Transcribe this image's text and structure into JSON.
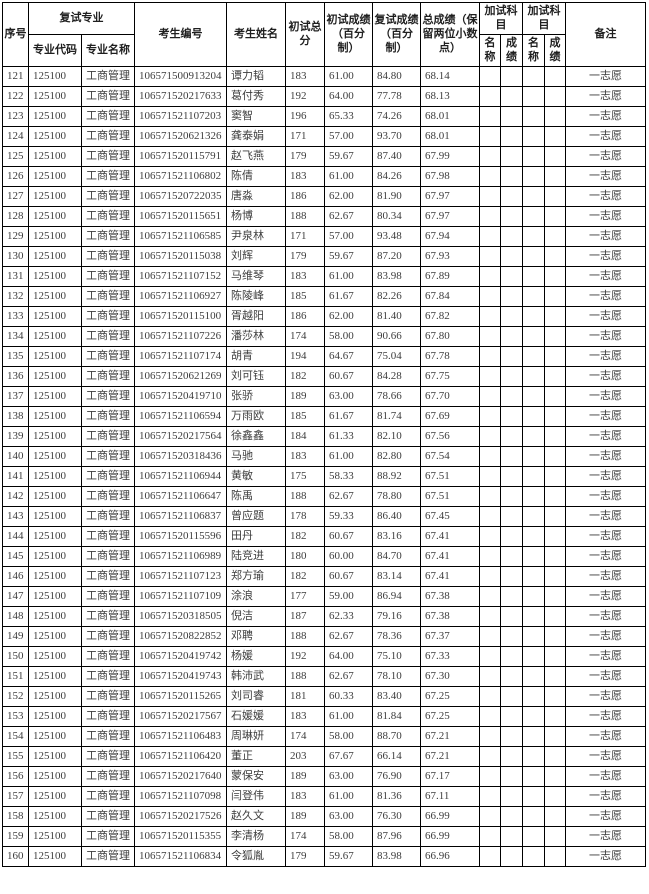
{
  "table": {
    "headers": {
      "seq": "序号",
      "retest_major": "复试专业",
      "major_code": "专业代码",
      "major_name": "专业名称",
      "candidate_no": "考生编号",
      "candidate_name": "考生姓名",
      "initial_total": "初试总分",
      "initial_pct": "初试成绩（百分制）",
      "retest_pct": "复试成绩（百分制）",
      "total_score": "总成绩（保留两位小数点）",
      "extra_subjects": "加试科目",
      "extra_name": "名称",
      "extra_score": "成绩",
      "remark": "备注"
    },
    "rows": [
      {
        "seq": "121",
        "major_code": "125100",
        "major_name": "工商管理",
        "candidate_no": "106571500913204",
        "name": "谭力韬",
        "initial_total": "183",
        "initial_pct": "61.00",
        "retest_pct": "84.80",
        "total": "68.14",
        "extra1_name": "",
        "extra1_score": "",
        "extra2_name": "",
        "extra2_score": "",
        "remark": "一志愿"
      },
      {
        "seq": "122",
        "major_code": "125100",
        "major_name": "工商管理",
        "candidate_no": "106571520217633",
        "name": "葛付秀",
        "initial_total": "192",
        "initial_pct": "64.00",
        "retest_pct": "77.78",
        "total": "68.13",
        "extra1_name": "",
        "extra1_score": "",
        "extra2_name": "",
        "extra2_score": "",
        "remark": "一志愿"
      },
      {
        "seq": "123",
        "major_code": "125100",
        "major_name": "工商管理",
        "candidate_no": "106571521107203",
        "name": "窦智",
        "initial_total": "196",
        "initial_pct": "65.33",
        "retest_pct": "74.26",
        "total": "68.01",
        "extra1_name": "",
        "extra1_score": "",
        "extra2_name": "",
        "extra2_score": "",
        "remark": "一志愿"
      },
      {
        "seq": "124",
        "major_code": "125100",
        "major_name": "工商管理",
        "candidate_no": "106571520621326",
        "name": "龚泰娟",
        "initial_total": "171",
        "initial_pct": "57.00",
        "retest_pct": "93.70",
        "total": "68.01",
        "extra1_name": "",
        "extra1_score": "",
        "extra2_name": "",
        "extra2_score": "",
        "remark": "一志愿"
      },
      {
        "seq": "125",
        "major_code": "125100",
        "major_name": "工商管理",
        "candidate_no": "106571520115791",
        "name": "赵飞燕",
        "initial_total": "179",
        "initial_pct": "59.67",
        "retest_pct": "87.40",
        "total": "67.99",
        "extra1_name": "",
        "extra1_score": "",
        "extra2_name": "",
        "extra2_score": "",
        "remark": "一志愿"
      },
      {
        "seq": "126",
        "major_code": "125100",
        "major_name": "工商管理",
        "candidate_no": "106571521106802",
        "name": "陈倩",
        "initial_total": "183",
        "initial_pct": "61.00",
        "retest_pct": "84.26",
        "total": "67.98",
        "extra1_name": "",
        "extra1_score": "",
        "extra2_name": "",
        "extra2_score": "",
        "remark": "一志愿"
      },
      {
        "seq": "127",
        "major_code": "125100",
        "major_name": "工商管理",
        "candidate_no": "106571520722035",
        "name": "唐淼",
        "initial_total": "186",
        "initial_pct": "62.00",
        "retest_pct": "81.90",
        "total": "67.97",
        "extra1_name": "",
        "extra1_score": "",
        "extra2_name": "",
        "extra2_score": "",
        "remark": "一志愿"
      },
      {
        "seq": "128",
        "major_code": "125100",
        "major_name": "工商管理",
        "candidate_no": "106571520115651",
        "name": "杨博",
        "initial_total": "188",
        "initial_pct": "62.67",
        "retest_pct": "80.34",
        "total": "67.97",
        "extra1_name": "",
        "extra1_score": "",
        "extra2_name": "",
        "extra2_score": "",
        "remark": "一志愿"
      },
      {
        "seq": "129",
        "major_code": "125100",
        "major_name": "工商管理",
        "candidate_no": "106571521106585",
        "name": "尹泉林",
        "initial_total": "171",
        "initial_pct": "57.00",
        "retest_pct": "93.48",
        "total": "67.94",
        "extra1_name": "",
        "extra1_score": "",
        "extra2_name": "",
        "extra2_score": "",
        "remark": "一志愿"
      },
      {
        "seq": "130",
        "major_code": "125100",
        "major_name": "工商管理",
        "candidate_no": "106571520115038",
        "name": "刘辉",
        "initial_total": "179",
        "initial_pct": "59.67",
        "retest_pct": "87.20",
        "total": "67.93",
        "extra1_name": "",
        "extra1_score": "",
        "extra2_name": "",
        "extra2_score": "",
        "remark": "一志愿"
      },
      {
        "seq": "131",
        "major_code": "125100",
        "major_name": "工商管理",
        "candidate_no": "106571521107152",
        "name": "马维琴",
        "initial_total": "183",
        "initial_pct": "61.00",
        "retest_pct": "83.98",
        "total": "67.89",
        "extra1_name": "",
        "extra1_score": "",
        "extra2_name": "",
        "extra2_score": "",
        "remark": "一志愿"
      },
      {
        "seq": "132",
        "major_code": "125100",
        "major_name": "工商管理",
        "candidate_no": "106571521106927",
        "name": "陈陵峰",
        "initial_total": "185",
        "initial_pct": "61.67",
        "retest_pct": "82.26",
        "total": "67.84",
        "extra1_name": "",
        "extra1_score": "",
        "extra2_name": "",
        "extra2_score": "",
        "remark": "一志愿"
      },
      {
        "seq": "133",
        "major_code": "125100",
        "major_name": "工商管理",
        "candidate_no": "106571520115100",
        "name": "胥越阳",
        "initial_total": "186",
        "initial_pct": "62.00",
        "retest_pct": "81.40",
        "total": "67.82",
        "extra1_name": "",
        "extra1_score": "",
        "extra2_name": "",
        "extra2_score": "",
        "remark": "一志愿"
      },
      {
        "seq": "134",
        "major_code": "125100",
        "major_name": "工商管理",
        "candidate_no": "106571521107226",
        "name": "潘莎林",
        "initial_total": "174",
        "initial_pct": "58.00",
        "retest_pct": "90.66",
        "total": "67.80",
        "extra1_name": "",
        "extra1_score": "",
        "extra2_name": "",
        "extra2_score": "",
        "remark": "一志愿"
      },
      {
        "seq": "135",
        "major_code": "125100",
        "major_name": "工商管理",
        "candidate_no": "106571521107174",
        "name": "胡青",
        "initial_total": "194",
        "initial_pct": "64.67",
        "retest_pct": "75.04",
        "total": "67.78",
        "extra1_name": "",
        "extra1_score": "",
        "extra2_name": "",
        "extra2_score": "",
        "remark": "一志愿"
      },
      {
        "seq": "136",
        "major_code": "125100",
        "major_name": "工商管理",
        "candidate_no": "106571520621269",
        "name": "刘可钰",
        "initial_total": "182",
        "initial_pct": "60.67",
        "retest_pct": "84.28",
        "total": "67.75",
        "extra1_name": "",
        "extra1_score": "",
        "extra2_name": "",
        "extra2_score": "",
        "remark": "一志愿"
      },
      {
        "seq": "137",
        "major_code": "125100",
        "major_name": "工商管理",
        "candidate_no": "106571520419710",
        "name": "张骄",
        "initial_total": "189",
        "initial_pct": "63.00",
        "retest_pct": "78.66",
        "total": "67.70",
        "extra1_name": "",
        "extra1_score": "",
        "extra2_name": "",
        "extra2_score": "",
        "remark": "一志愿"
      },
      {
        "seq": "138",
        "major_code": "125100",
        "major_name": "工商管理",
        "candidate_no": "106571521106594",
        "name": "万雨欧",
        "initial_total": "185",
        "initial_pct": "61.67",
        "retest_pct": "81.74",
        "total": "67.69",
        "extra1_name": "",
        "extra1_score": "",
        "extra2_name": "",
        "extra2_score": "",
        "remark": "一志愿"
      },
      {
        "seq": "139",
        "major_code": "125100",
        "major_name": "工商管理",
        "candidate_no": "106571520217564",
        "name": "徐鑫鑫",
        "initial_total": "184",
        "initial_pct": "61.33",
        "retest_pct": "82.10",
        "total": "67.56",
        "extra1_name": "",
        "extra1_score": "",
        "extra2_name": "",
        "extra2_score": "",
        "remark": "一志愿"
      },
      {
        "seq": "140",
        "major_code": "125100",
        "major_name": "工商管理",
        "candidate_no": "106571520318436",
        "name": "马驰",
        "initial_total": "183",
        "initial_pct": "61.00",
        "retest_pct": "82.80",
        "total": "67.54",
        "extra1_name": "",
        "extra1_score": "",
        "extra2_name": "",
        "extra2_score": "",
        "remark": "一志愿"
      },
      {
        "seq": "141",
        "major_code": "125100",
        "major_name": "工商管理",
        "candidate_no": "106571521106944",
        "name": "黄敏",
        "initial_total": "175",
        "initial_pct": "58.33",
        "retest_pct": "88.92",
        "total": "67.51",
        "extra1_name": "",
        "extra1_score": "",
        "extra2_name": "",
        "extra2_score": "",
        "remark": "一志愿"
      },
      {
        "seq": "142",
        "major_code": "125100",
        "major_name": "工商管理",
        "candidate_no": "106571521106647",
        "name": "陈禹",
        "initial_total": "188",
        "initial_pct": "62.67",
        "retest_pct": "78.80",
        "total": "67.51",
        "extra1_name": "",
        "extra1_score": "",
        "extra2_name": "",
        "extra2_score": "",
        "remark": "一志愿"
      },
      {
        "seq": "143",
        "major_code": "125100",
        "major_name": "工商管理",
        "candidate_no": "106571521106837",
        "name": "曾应题",
        "initial_total": "178",
        "initial_pct": "59.33",
        "retest_pct": "86.40",
        "total": "67.45",
        "extra1_name": "",
        "extra1_score": "",
        "extra2_name": "",
        "extra2_score": "",
        "remark": "一志愿"
      },
      {
        "seq": "144",
        "major_code": "125100",
        "major_name": "工商管理",
        "candidate_no": "106571520115596",
        "name": "田丹",
        "initial_total": "182",
        "initial_pct": "60.67",
        "retest_pct": "83.16",
        "total": "67.41",
        "extra1_name": "",
        "extra1_score": "",
        "extra2_name": "",
        "extra2_score": "",
        "remark": "一志愿"
      },
      {
        "seq": "145",
        "major_code": "125100",
        "major_name": "工商管理",
        "candidate_no": "106571521106989",
        "name": "陆竞进",
        "initial_total": "180",
        "initial_pct": "60.00",
        "retest_pct": "84.70",
        "total": "67.41",
        "extra1_name": "",
        "extra1_score": "",
        "extra2_name": "",
        "extra2_score": "",
        "remark": "一志愿"
      },
      {
        "seq": "146",
        "major_code": "125100",
        "major_name": "工商管理",
        "candidate_no": "106571521107123",
        "name": "郑方瑜",
        "initial_total": "182",
        "initial_pct": "60.67",
        "retest_pct": "83.14",
        "total": "67.41",
        "extra1_name": "",
        "extra1_score": "",
        "extra2_name": "",
        "extra2_score": "",
        "remark": "一志愿"
      },
      {
        "seq": "147",
        "major_code": "125100",
        "major_name": "工商管理",
        "candidate_no": "106571521107109",
        "name": "涂浪",
        "initial_total": "177",
        "initial_pct": "59.00",
        "retest_pct": "86.94",
        "total": "67.38",
        "extra1_name": "",
        "extra1_score": "",
        "extra2_name": "",
        "extra2_score": "",
        "remark": "一志愿"
      },
      {
        "seq": "148",
        "major_code": "125100",
        "major_name": "工商管理",
        "candidate_no": "106571520318505",
        "name": "倪洁",
        "initial_total": "187",
        "initial_pct": "62.33",
        "retest_pct": "79.16",
        "total": "67.38",
        "extra1_name": "",
        "extra1_score": "",
        "extra2_name": "",
        "extra2_score": "",
        "remark": "一志愿"
      },
      {
        "seq": "149",
        "major_code": "125100",
        "major_name": "工商管理",
        "candidate_no": "106571520822852",
        "name": "邓聘",
        "initial_total": "188",
        "initial_pct": "62.67",
        "retest_pct": "78.36",
        "total": "67.37",
        "extra1_name": "",
        "extra1_score": "",
        "extra2_name": "",
        "extra2_score": "",
        "remark": "一志愿"
      },
      {
        "seq": "150",
        "major_code": "125100",
        "major_name": "工商管理",
        "candidate_no": "106571520419742",
        "name": "杨媛",
        "initial_total": "192",
        "initial_pct": "64.00",
        "retest_pct": "75.10",
        "total": "67.33",
        "extra1_name": "",
        "extra1_score": "",
        "extra2_name": "",
        "extra2_score": "",
        "remark": "一志愿"
      },
      {
        "seq": "151",
        "major_code": "125100",
        "major_name": "工商管理",
        "candidate_no": "106571520419743",
        "name": "韩沛武",
        "initial_total": "188",
        "initial_pct": "62.67",
        "retest_pct": "78.10",
        "total": "67.30",
        "extra1_name": "",
        "extra1_score": "",
        "extra2_name": "",
        "extra2_score": "",
        "remark": "一志愿"
      },
      {
        "seq": "152",
        "major_code": "125100",
        "major_name": "工商管理",
        "candidate_no": "106571520115265",
        "name": "刘司睿",
        "initial_total": "181",
        "initial_pct": "60.33",
        "retest_pct": "83.40",
        "total": "67.25",
        "extra1_name": "",
        "extra1_score": "",
        "extra2_name": "",
        "extra2_score": "",
        "remark": "一志愿"
      },
      {
        "seq": "153",
        "major_code": "125100",
        "major_name": "工商管理",
        "candidate_no": "106571520217567",
        "name": "石媛媛",
        "initial_total": "183",
        "initial_pct": "61.00",
        "retest_pct": "81.84",
        "total": "67.25",
        "extra1_name": "",
        "extra1_score": "",
        "extra2_name": "",
        "extra2_score": "",
        "remark": "一志愿"
      },
      {
        "seq": "154",
        "major_code": "125100",
        "major_name": "工商管理",
        "candidate_no": "106571521106483",
        "name": "周琳妍",
        "initial_total": "174",
        "initial_pct": "58.00",
        "retest_pct": "88.70",
        "total": "67.21",
        "extra1_name": "",
        "extra1_score": "",
        "extra2_name": "",
        "extra2_score": "",
        "remark": "一志愿"
      },
      {
        "seq": "155",
        "major_code": "125100",
        "major_name": "工商管理",
        "candidate_no": "106571521106420",
        "name": "董正",
        "initial_total": "203",
        "initial_pct": "67.67",
        "retest_pct": "66.14",
        "total": "67.21",
        "extra1_name": "",
        "extra1_score": "",
        "extra2_name": "",
        "extra2_score": "",
        "remark": "一志愿"
      },
      {
        "seq": "156",
        "major_code": "125100",
        "major_name": "工商管理",
        "candidate_no": "106571520217640",
        "name": "蒙保安",
        "initial_total": "189",
        "initial_pct": "63.00",
        "retest_pct": "76.90",
        "total": "67.17",
        "extra1_name": "",
        "extra1_score": "",
        "extra2_name": "",
        "extra2_score": "",
        "remark": "一志愿"
      },
      {
        "seq": "157",
        "major_code": "125100",
        "major_name": "工商管理",
        "candidate_no": "106571521107098",
        "name": "闫登伟",
        "initial_total": "183",
        "initial_pct": "61.00",
        "retest_pct": "81.36",
        "total": "67.11",
        "extra1_name": "",
        "extra1_score": "",
        "extra2_name": "",
        "extra2_score": "",
        "remark": "一志愿"
      },
      {
        "seq": "158",
        "major_code": "125100",
        "major_name": "工商管理",
        "candidate_no": "106571520217526",
        "name": "赵久文",
        "initial_total": "189",
        "initial_pct": "63.00",
        "retest_pct": "76.30",
        "total": "66.99",
        "extra1_name": "",
        "extra1_score": "",
        "extra2_name": "",
        "extra2_score": "",
        "remark": "一志愿"
      },
      {
        "seq": "159",
        "major_code": "125100",
        "major_name": "工商管理",
        "candidate_no": "106571520115355",
        "name": "李清杨",
        "initial_total": "174",
        "initial_pct": "58.00",
        "retest_pct": "87.96",
        "total": "66.99",
        "extra1_name": "",
        "extra1_score": "",
        "extra2_name": "",
        "extra2_score": "",
        "remark": "一志愿"
      },
      {
        "seq": "160",
        "major_code": "125100",
        "major_name": "工商管理",
        "candidate_no": "106571521106834",
        "name": "令狐胤",
        "initial_total": "179",
        "initial_pct": "59.67",
        "retest_pct": "83.98",
        "total": "66.96",
        "extra1_name": "",
        "extra1_score": "",
        "extra2_name": "",
        "extra2_score": "",
        "remark": "一志愿"
      }
    ]
  }
}
